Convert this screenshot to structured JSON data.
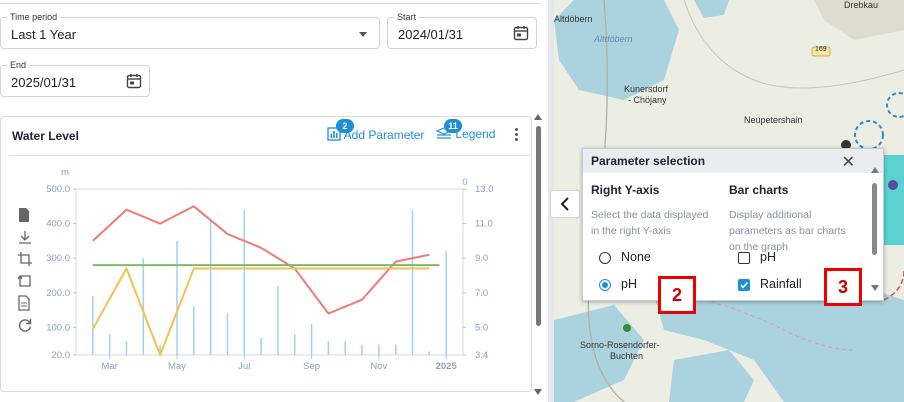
{
  "filters": {
    "time_period": {
      "label": "Time period",
      "value": "Last 1 Year"
    },
    "start": {
      "label": "Start",
      "value": "2024/01/31"
    },
    "end": {
      "label": "End",
      "value": "2025/01/31"
    }
  },
  "card": {
    "title": "Water Level",
    "add_parameter": {
      "label": "Add Parameter",
      "badge": "2"
    },
    "legend": {
      "label": "Legend",
      "badge": "11"
    }
  },
  "chart_data": {
    "type": "line",
    "x_ticks": [
      "Mar",
      "May",
      "Jul",
      "Sep",
      "Nov",
      "2025"
    ],
    "x_ticks_pos": [
      1.5,
      3.5,
      5.5,
      7.5,
      9.5,
      11.5
    ],
    "xlim": [
      0.5,
      12
    ],
    "left_axis": {
      "unit": "m",
      "ticks": [
        "500.0",
        "400.0",
        "300.0",
        "200.0",
        "100.0",
        "20.0"
      ],
      "tick_values": [
        500,
        400,
        300,
        200,
        100,
        20
      ],
      "ylim": [
        20,
        500
      ]
    },
    "right_axis": {
      "unit": "0",
      "ticks": [
        "13.0",
        "11.0",
        "9.0",
        "7.0",
        "5.0",
        "3.4"
      ],
      "tick_values": [
        13,
        11,
        9,
        7,
        5,
        3.4
      ],
      "ylim": [
        3.4,
        13
      ]
    },
    "series": [
      {
        "color": "#ee7b74",
        "axis": "left",
        "x": [
          1,
          2,
          3,
          4,
          5,
          6,
          7,
          8,
          9,
          10,
          11
        ],
        "y": [
          350,
          440,
          400,
          450,
          370,
          330,
          270,
          140,
          180,
          290,
          310
        ]
      },
      {
        "color": "#f2c14f",
        "axis": "left",
        "x": [
          1,
          2,
          3,
          4,
          11
        ],
        "y": [
          95,
          270,
          20,
          270,
          270
        ]
      },
      {
        "color": "#7dbb6e",
        "axis": "left",
        "x": [
          1,
          11.3
        ],
        "y": [
          280,
          280
        ]
      }
    ],
    "bars": {
      "color": "#9ed3ec",
      "axis": "left",
      "x": [
        1,
        1.5,
        2,
        2.5,
        3,
        3.5,
        4,
        4.5,
        5,
        5.5,
        6,
        6.5,
        7,
        7.5,
        8,
        8.5,
        9,
        9.5,
        10,
        10.5,
        11,
        11.5
      ],
      "y": [
        170,
        60,
        40,
        280,
        30,
        330,
        140,
        390,
        120,
        420,
        50,
        200,
        60,
        90,
        40,
        40,
        30,
        30,
        30,
        420,
        10,
        300
      ]
    }
  },
  "panel": {
    "title": "Parameter selection",
    "right_axis": {
      "heading": "Right Y-axis",
      "description": [
        "Select the data displayed",
        "in the right Y-axis"
      ],
      "options": [
        {
          "label": "None",
          "checked": false
        },
        {
          "label": "pH",
          "checked": true
        }
      ]
    },
    "bar_charts": {
      "heading": "Bar charts",
      "description": [
        "Display additional",
        "parameters as bar charts",
        "on the graph"
      ],
      "options": [
        {
          "label": "pH",
          "checked": false
        },
        {
          "label": "Rainfall",
          "checked": true
        }
      ]
    }
  },
  "markers": [
    "2",
    "3"
  ],
  "map": {
    "labels": [
      "Altdöbern",
      "Drebkau",
      "Kunersdorf",
      "- Chöjany",
      "Neupetershain",
      "Sorno-Rosendorfer-",
      "Buchten",
      "Altdöbern",
      "169"
    ]
  }
}
